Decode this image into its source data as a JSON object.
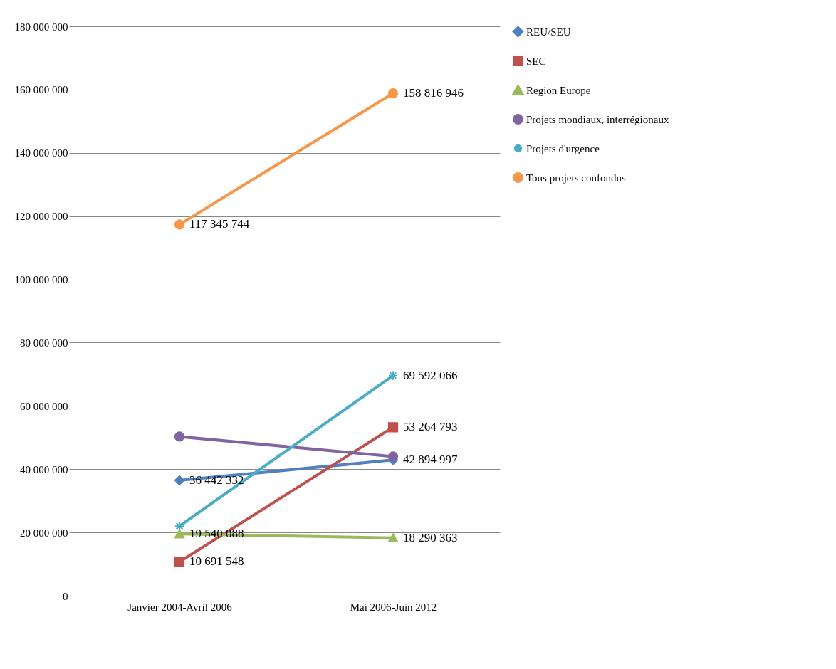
{
  "chart_data": {
    "type": "line",
    "categories": [
      "Janvier 2004-Avril 2006",
      "Mai 2006-Juin 2012"
    ],
    "series": [
      {
        "name": "REU/SEU",
        "color": "#4f81bd",
        "marker": "diamond",
        "values": [
          36442332,
          42894997
        ],
        "value_labels": [
          "36 442 332",
          "42 894 997"
        ]
      },
      {
        "name": "SEC",
        "color": "#c0504d",
        "marker": "square",
        "values": [
          10691548,
          53264793
        ],
        "value_labels": [
          "10 691 548",
          "53 264 793"
        ]
      },
      {
        "name": "Region Europe",
        "color": "#9bbb59",
        "marker": "triangle",
        "values": [
          19540088,
          18290363
        ],
        "value_labels": [
          "19 540 088",
          "18 290 363"
        ]
      },
      {
        "name": "Projets mondiaux, interrégionaux",
        "color": "#8064a2",
        "marker": "circle",
        "values": [
          50300000,
          44000000
        ]
      },
      {
        "name": "Projets d'urgence",
        "color": "#4bacc6",
        "marker": "cross",
        "values": [
          22000000,
          69592066
        ],
        "value_labels": [
          null,
          "69 592 066"
        ]
      },
      {
        "name": "Tous projets confondus",
        "color": "#f79646",
        "marker": "circle",
        "values": [
          117345744,
          158816946
        ],
        "value_labels": [
          "117 345 744",
          "158 816 946"
        ]
      }
    ],
    "ylim": [
      0,
      180000000
    ],
    "yticks": [
      0,
      {
        "value": 20000000,
        "label": "20 000 000"
      },
      {
        "value": 40000000,
        "label": "40 000 000"
      },
      {
        "value": 60000000,
        "label": "60 000 000"
      },
      {
        "value": 80000000,
        "label": "80 000 000"
      },
      {
        "value": 100000000,
        "label": "100 000 000"
      },
      {
        "value": 120000000,
        "label": "120 000 000"
      },
      {
        "value": 140000000,
        "label": "140 000 000"
      },
      {
        "value": 160000000,
        "label": "160 000 000"
      },
      {
        "value": 180000000,
        "label": "180 000 000"
      }
    ],
    "grid": "y",
    "legend": "right"
  }
}
